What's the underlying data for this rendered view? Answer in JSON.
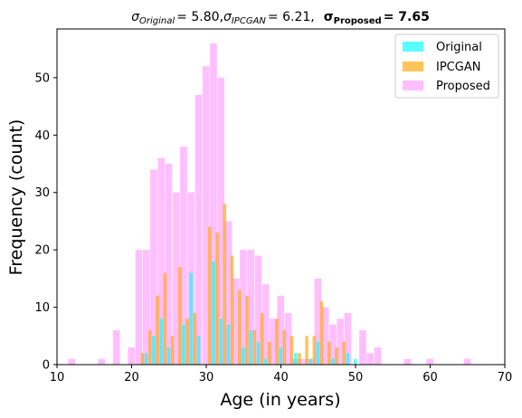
{
  "chart_data": {
    "type": "bar",
    "title": {
      "sigma_symbol": "σ",
      "original_sub": "Original",
      "original_value": "= 5.80,",
      "ipcgan_sub": "IPCGAN",
      "ipcgan_value": "= 6.21,",
      "proposed_sub": "Proposed",
      "proposed_value": "= 7.65"
    },
    "xlabel": "Age (in years)",
    "ylabel": "Frequency (count)",
    "xlim": [
      10,
      70
    ],
    "ylim": [
      0,
      58.5
    ],
    "xticks": [
      10,
      20,
      30,
      40,
      50,
      60,
      70
    ],
    "yticks": [
      0,
      10,
      20,
      30,
      40,
      50
    ],
    "grid": false,
    "legend_position": "top-right",
    "series": [
      {
        "name": "Original",
        "color": "#00ffff",
        "alpha": 0.65,
        "bin_width": 0.5,
        "x": [
          22,
          23,
          24,
          25,
          27,
          28,
          29,
          31,
          32,
          33,
          35,
          36,
          37,
          38,
          40,
          42,
          44,
          45,
          47,
          49,
          50
        ],
        "values": [
          2,
          5,
          8,
          3,
          7,
          16,
          5,
          18,
          8,
          7,
          3,
          6,
          4,
          1,
          3,
          2,
          1,
          4,
          1,
          2,
          1
        ]
      },
      {
        "name": "IPCGAN",
        "color": "#ffa500",
        "alpha": 0.65,
        "bin_width": 0.5,
        "x": [
          21.5,
          22.5,
          23.5,
          24.5,
          25.5,
          26.5,
          27.5,
          28.5,
          30.5,
          31.5,
          32.5,
          33.5,
          34.5,
          35.5,
          36.5,
          37.5,
          38.5,
          39.5,
          40.5,
          41.5,
          42.5,
          43.5,
          44.5,
          45.5,
          46.5,
          47.5,
          48.5
        ],
        "values": [
          2,
          6,
          12,
          16,
          5,
          17,
          8,
          9,
          24,
          23,
          28,
          19,
          13,
          12,
          6,
          9,
          4,
          8,
          6,
          5,
          2,
          5,
          5,
          11,
          4,
          3,
          4
        ]
      },
      {
        "name": "Proposed",
        "color": "#ff80ff",
        "alpha": 0.5,
        "bin_width": 1,
        "x": [
          12,
          16,
          18,
          20,
          21,
          22,
          23,
          24,
          25,
          26,
          27,
          28,
          29,
          30,
          31,
          32,
          33,
          34,
          35,
          36,
          37,
          38,
          39,
          40,
          41,
          42,
          43,
          44,
          45,
          46,
          47,
          48,
          49,
          51,
          52,
          53,
          57,
          60,
          65
        ],
        "values": [
          1,
          1,
          6,
          3,
          20,
          20,
          34,
          36,
          35,
          30,
          38,
          30,
          47,
          52,
          56,
          50,
          25,
          15,
          20,
          20,
          19,
          14,
          8,
          12,
          9,
          1,
          1,
          1,
          15,
          10,
          7,
          8,
          9,
          6,
          2,
          3,
          1,
          1,
          1
        ]
      }
    ]
  }
}
